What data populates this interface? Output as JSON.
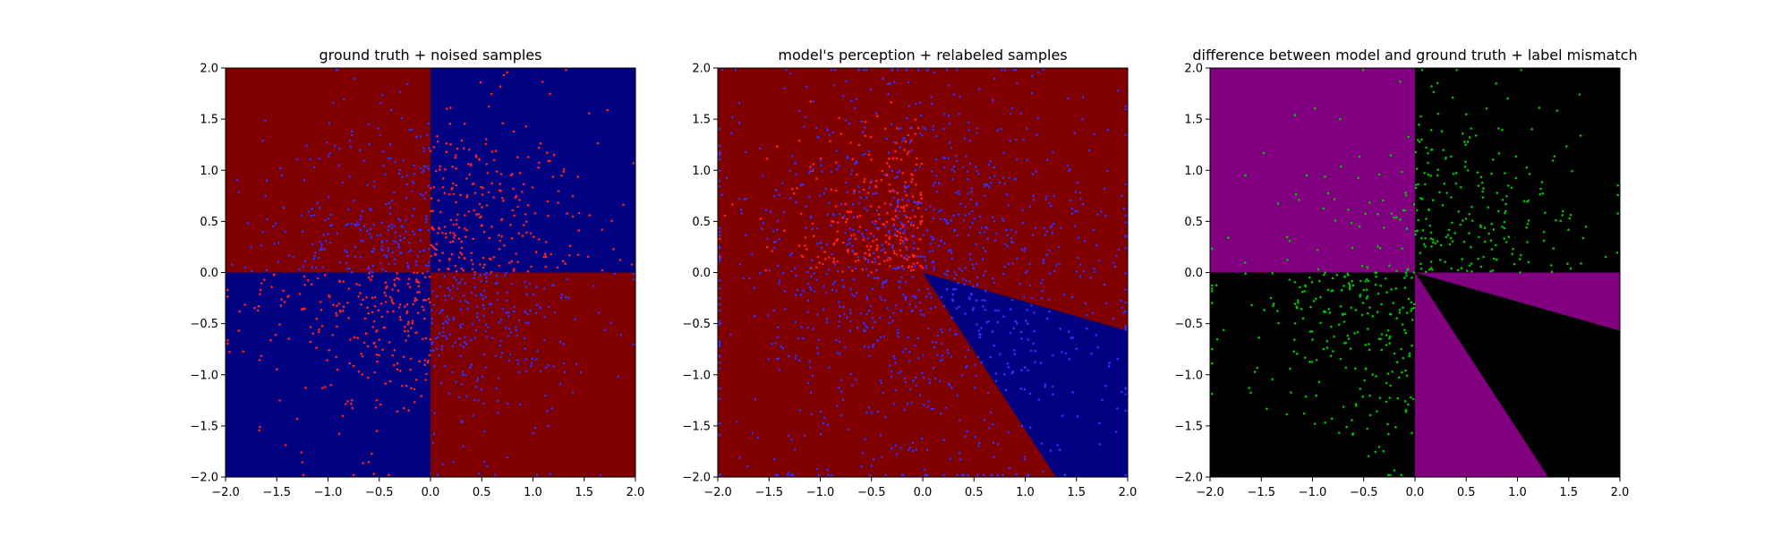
{
  "figure": {
    "background": "#ffffff"
  },
  "charts": [
    {
      "id": "ground-truth",
      "title": "ground truth + noised samples",
      "type": "scatter",
      "xlim": [
        -2.0,
        2.0
      ],
      "ylim": [
        -2.0,
        2.0
      ],
      "xticks": [
        "−2.0",
        "−1.5",
        "−1.0",
        "−0.5",
        "0.0",
        "0.5",
        "1.0",
        "1.5",
        "2.0"
      ],
      "yticks": [
        "−2.0",
        "−1.5",
        "−1.0",
        "−0.5",
        "0.0",
        "0.5",
        "1.0",
        "1.5",
        "2.0"
      ],
      "tick_values": [
        -2.0,
        -1.5,
        -1.0,
        -0.5,
        0.0,
        0.5,
        1.0,
        1.5,
        2.0
      ],
      "grid": false,
      "regions": [
        {
          "name": "upper-left quadrant",
          "color": "#800000",
          "polygon": [
            [
              -2,
              0
            ],
            [
              0,
              0
            ],
            [
              0,
              2
            ],
            [
              -2,
              2
            ]
          ]
        },
        {
          "name": "upper-right quadrant",
          "color": "#000080",
          "polygon": [
            [
              0,
              0
            ],
            [
              2,
              0
            ],
            [
              2,
              2
            ],
            [
              0,
              2
            ]
          ]
        },
        {
          "name": "lower-left quadrant",
          "color": "#000080",
          "polygon": [
            [
              -2,
              -2
            ],
            [
              0,
              -2
            ],
            [
              0,
              0
            ],
            [
              -2,
              0
            ]
          ]
        },
        {
          "name": "lower-right quadrant",
          "color": "#800000",
          "polygon": [
            [
              0,
              -2
            ],
            [
              2,
              -2
            ],
            [
              2,
              0
            ],
            [
              0,
              0
            ]
          ]
        }
      ],
      "series": [
        {
          "color": "#ff2020",
          "region": "x*y>0",
          "count": 520,
          "spread": 0.8
        },
        {
          "color": "#3030ff",
          "region": "x*y<0",
          "count": 520,
          "spread": 0.8
        }
      ]
    },
    {
      "id": "model-perception",
      "title": "model's perception + relabeled samples",
      "type": "scatter",
      "xlim": [
        -2.0,
        2.0
      ],
      "ylim": [
        -2.0,
        2.0
      ],
      "xticks": [
        "−2.0",
        "−1.5",
        "−1.0",
        "−0.5",
        "0.0",
        "0.5",
        "1.0",
        "1.5",
        "2.0"
      ],
      "yticks": [
        "−2.0",
        "−1.5",
        "−1.0",
        "−0.5",
        "0.0",
        "0.5",
        "1.0",
        "1.5",
        "2.0"
      ],
      "tick_values": [
        -2.0,
        -1.5,
        -1.0,
        -0.5,
        0.0,
        0.5,
        1.0,
        1.5,
        2.0
      ],
      "grid": false,
      "regions": [
        {
          "name": "red background",
          "color": "#800000",
          "polygon": [
            [
              -2,
              -2
            ],
            [
              2,
              -2
            ],
            [
              2,
              2
            ],
            [
              -2,
              2
            ]
          ]
        },
        {
          "name": "blue wedge",
          "color": "#000080",
          "polygon": [
            [
              0,
              0
            ],
            [
              2,
              -0.57
            ],
            [
              2,
              -2
            ],
            [
              1.3,
              -2
            ]
          ]
        }
      ],
      "series": [
        {
          "color": "#ff2020",
          "region": "upper-left",
          "count": 260,
          "spread": 0.7
        },
        {
          "color": "#3030ff",
          "region": "all",
          "count": 1150,
          "spread": 1.0
        }
      ]
    },
    {
      "id": "difference",
      "title": "difference between model and ground truth + label mismatch",
      "type": "scatter",
      "xlim": [
        -2.0,
        2.0
      ],
      "ylim": [
        -2.0,
        2.0
      ],
      "xticks": [
        "−2.0",
        "−1.5",
        "−1.0",
        "−0.5",
        "0.0",
        "0.5",
        "1.0",
        "1.5",
        "2.0"
      ],
      "yticks": [
        "−2.0",
        "−1.5",
        "−1.0",
        "−0.5",
        "0.0",
        "0.5",
        "1.0",
        "1.5",
        "2.0"
      ],
      "tick_values": [
        -2.0,
        -1.5,
        -1.0,
        -0.5,
        0.0,
        0.5,
        1.0,
        1.5,
        2.0
      ],
      "grid": false,
      "regions": [
        {
          "name": "black background",
          "color": "#000000",
          "polygon": [
            [
              -2,
              -2
            ],
            [
              2,
              -2
            ],
            [
              2,
              2
            ],
            [
              -2,
              2
            ]
          ]
        },
        {
          "name": "purple upper-left",
          "color": "#800080",
          "polygon": [
            [
              -2,
              0
            ],
            [
              0,
              0
            ],
            [
              0,
              2
            ],
            [
              -2,
              2
            ]
          ]
        },
        {
          "name": "purple thin wedge",
          "color": "#800080",
          "polygon": [
            [
              0,
              0
            ],
            [
              2,
              0
            ],
            [
              2,
              -0.57
            ]
          ]
        },
        {
          "name": "purple lower wedge",
          "color": "#800080",
          "polygon": [
            [
              0,
              0
            ],
            [
              1.3,
              -2
            ],
            [
              0,
              -2
            ]
          ]
        }
      ],
      "series": [
        {
          "color": "#00c000",
          "region": "mismatch",
          "count": 520,
          "spread": 0.8
        }
      ]
    }
  ]
}
